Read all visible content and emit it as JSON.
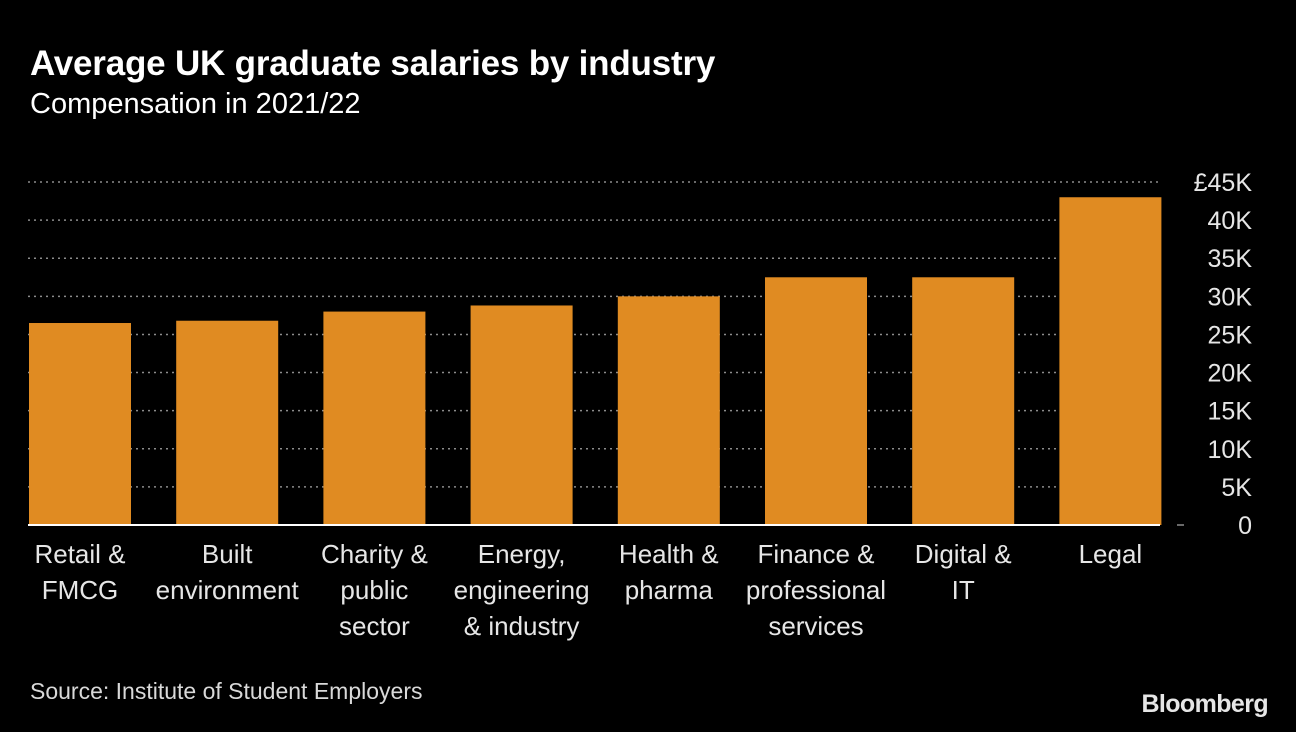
{
  "chart_data": {
    "type": "bar",
    "title": "Average UK graduate salaries by industry",
    "subtitle": "Compensation in 2021/22",
    "categories": [
      [
        "Retail &",
        "FMCG"
      ],
      [
        "Built",
        "environment"
      ],
      [
        "Charity &",
        "public",
        "sector"
      ],
      [
        "Energy,",
        "engineering",
        "& industry"
      ],
      [
        "Health &",
        "pharma"
      ],
      [
        "Finance &",
        "professional",
        "services"
      ],
      [
        "Digital &",
        "IT"
      ],
      [
        "Legal"
      ]
    ],
    "values": [
      26500,
      26800,
      28000,
      28800,
      30000,
      32500,
      32500,
      43000
    ],
    "y_ticks": [
      0,
      5000,
      10000,
      15000,
      20000,
      25000,
      30000,
      35000,
      40000,
      45000
    ],
    "y_tick_labels": [
      "0",
      "5K",
      "10K",
      "15K",
      "20K",
      "25K",
      "30K",
      "35K",
      "40K",
      "£45K"
    ],
    "ylim": [
      0,
      45000
    ],
    "xlabel": "",
    "ylabel": "",
    "grid": true,
    "bar_color": "#e08b22",
    "grid_color": "#8c8c8c",
    "axis_color": "#ffffff",
    "y_axis_position": "right"
  },
  "source": "Source: Institute of Student Employers",
  "brand": "Bloomberg"
}
